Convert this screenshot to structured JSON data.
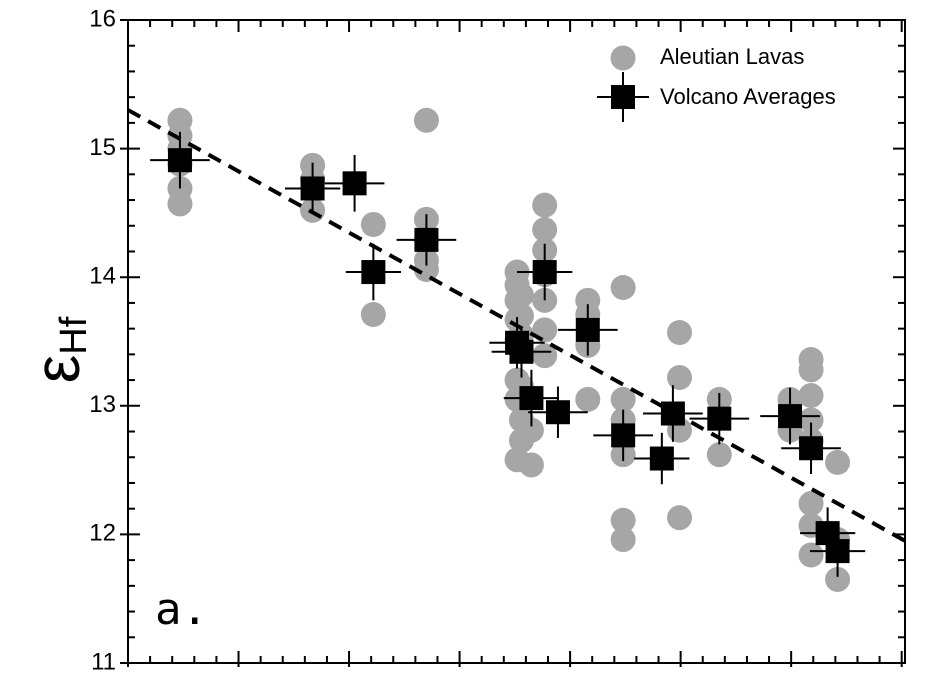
{
  "chart_data": {
    "type": "scatter",
    "ylabel": "ε",
    "ylabel_sub": "Hf",
    "annotation": "a.",
    "xlim": [
      0,
      7.03
    ],
    "ylim": [
      11,
      16
    ],
    "xticks": [
      0,
      1,
      2,
      3,
      4,
      5,
      6,
      7
    ],
    "xminor": [
      0.2,
      0.4,
      0.6,
      0.8,
      1.2,
      1.4,
      1.6,
      1.8,
      2.2,
      2.4,
      2.6,
      2.8,
      3.2,
      3.4,
      3.6,
      3.8,
      4.2,
      4.4,
      4.6,
      4.8,
      5.2,
      5.4,
      5.6,
      5.8,
      6.2,
      6.4,
      6.6,
      6.8
    ],
    "yticks": [
      11,
      12,
      13,
      14,
      15,
      16
    ],
    "yminor": [
      11.2,
      11.4,
      11.6,
      11.8,
      12.2,
      12.4,
      12.6,
      12.8,
      13.2,
      13.4,
      13.6,
      13.8,
      14.2,
      14.4,
      14.6,
      14.8,
      15.2,
      15.4,
      15.6,
      15.8
    ],
    "legend": "upper right",
    "fit_line": {
      "color": "#000000",
      "x": [
        0,
        7.03
      ],
      "y": [
        15.3,
        11.95
      ]
    },
    "series": [
      {
        "name": "Aleutian Lavas",
        "color": "#a6a6a6",
        "marker": "circle",
        "x": [
          0.47,
          0.47,
          0.47,
          0.47,
          0.47,
          0.47,
          1.67,
          1.67,
          1.67,
          2.22,
          2.22,
          2.7,
          2.7,
          2.7,
          2.7,
          2.7,
          3.52,
          3.52,
          3.52,
          3.52,
          3.52,
          3.52,
          3.52,
          3.52,
          3.56,
          3.56,
          3.56,
          3.56,
          3.56,
          3.56,
          3.65,
          3.65,
          3.77,
          3.77,
          3.77,
          3.77,
          3.77,
          3.77,
          3.77,
          4.16,
          4.16,
          4.16,
          4.16,
          4.48,
          4.48,
          4.48,
          4.48,
          4.48,
          4.48,
          4.99,
          4.99,
          4.99,
          4.99,
          5.35,
          5.35,
          5.99,
          5.99,
          6.18,
          6.18,
          6.18,
          6.18,
          6.18,
          6.18,
          6.18,
          6.18,
          6.42,
          6.42,
          6.42
        ],
        "values": [
          15.22,
          15.1,
          15.0,
          14.88,
          14.69,
          14.57,
          14.87,
          14.76,
          14.52,
          14.41,
          13.71,
          15.22,
          14.45,
          14.29,
          14.13,
          14.06,
          14.04,
          13.94,
          13.82,
          13.67,
          13.51,
          13.2,
          13.05,
          12.58,
          13.86,
          13.7,
          13.55,
          13.15,
          12.89,
          12.73,
          12.81,
          12.54,
          14.56,
          14.37,
          14.21,
          14.02,
          13.82,
          13.59,
          13.39,
          13.82,
          13.71,
          13.47,
          13.05,
          13.92,
          13.05,
          12.89,
          12.62,
          12.11,
          11.96,
          13.57,
          13.22,
          12.81,
          12.13,
          13.05,
          12.62,
          13.05,
          12.81,
          13.36,
          13.28,
          13.08,
          12.89,
          12.73,
          12.24,
          12.07,
          11.84,
          12.56,
          11.96,
          11.65
        ]
      },
      {
        "name": "Volcano Averages",
        "color": "#000000",
        "marker": "square",
        "x": [
          0.47,
          1.67,
          2.05,
          2.22,
          2.7,
          3.52,
          3.56,
          3.65,
          3.77,
          3.89,
          4.16,
          4.48,
          4.83,
          4.93,
          5.35,
          5.99,
          6.18,
          6.33,
          6.42
        ],
        "values": [
          14.91,
          14.69,
          14.73,
          14.04,
          14.29,
          13.49,
          13.42,
          13.06,
          14.04,
          12.95,
          13.59,
          12.77,
          12.59,
          12.94,
          12.9,
          12.92,
          12.67,
          12.01,
          11.87
        ],
        "xerr": [
          0.27,
          0.25,
          0.27,
          0.25,
          0.27,
          0.25,
          0.27,
          0.25,
          0.25,
          0.27,
          0.27,
          0.27,
          0.25,
          0.27,
          0.27,
          0.27,
          0.27,
          0.25,
          0.25
        ],
        "yerr": [
          0.22,
          0.2,
          0.22,
          0.22,
          0.2,
          0.2,
          0.2,
          0.22,
          0.22,
          0.2,
          0.2,
          0.2,
          0.2,
          0.22,
          0.2,
          0.22,
          0.2,
          0.2,
          0.2
        ]
      }
    ]
  }
}
